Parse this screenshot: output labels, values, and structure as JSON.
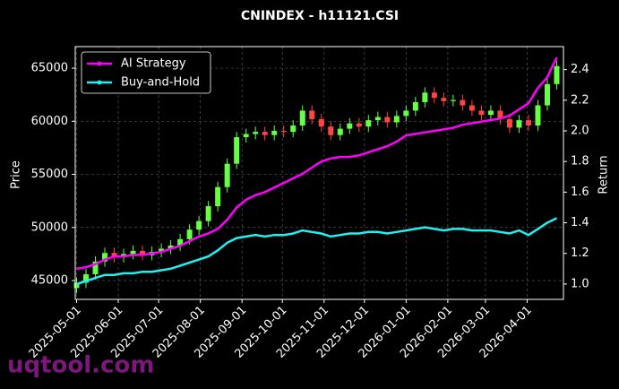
{
  "chart_data": {
    "type": "candlestick",
    "title": "CNINDEX - h11121.CSI",
    "y_label": "Price",
    "y2_label": "Return",
    "watermark": "uqtool.com",
    "grid": true,
    "legend": "upper left",
    "x": [
      "2025-05-01",
      "2025-05-08",
      "2025-05-15",
      "2025-05-22",
      "2025-05-29",
      "2025-06-05",
      "2025-06-12",
      "2025-06-19",
      "2025-06-26",
      "2025-07-03",
      "2025-07-10",
      "2025-07-17",
      "2025-07-24",
      "2025-07-31",
      "2025-08-07",
      "2025-08-14",
      "2025-08-21",
      "2025-08-28",
      "2025-09-04",
      "2025-09-11",
      "2025-09-18",
      "2025-09-25",
      "2025-10-02",
      "2025-10-09",
      "2025-10-16",
      "2025-10-23",
      "2025-10-30",
      "2025-11-06",
      "2025-11-13",
      "2025-11-20",
      "2025-11-27",
      "2025-12-04",
      "2025-12-11",
      "2025-12-18",
      "2025-12-25",
      "2026-01-01",
      "2026-01-08",
      "2026-01-15",
      "2026-01-22",
      "2026-01-29",
      "2026-02-05",
      "2026-02-12",
      "2026-02-19",
      "2026-02-26",
      "2026-03-05",
      "2026-03-12",
      "2026-03-19",
      "2026-03-26",
      "2026-04-02",
      "2026-04-09",
      "2026-04-16",
      "2026-04-23"
    ],
    "xlim": [
      "2025-04-30",
      "2026-04-28"
    ],
    "xticks": [
      "2025-05-01",
      "2025-06-01",
      "2025-07-01",
      "2025-08-01",
      "2025-09-01",
      "2025-10-01",
      "2025-11-01",
      "2025-12-01",
      "2026-01-01",
      "2026-02-01",
      "2026-03-01",
      "2026-04-01"
    ],
    "candles": {
      "up_color": "#66ff44",
      "down_color": "#ff4444",
      "open": [
        44300,
        44800,
        45600,
        46800,
        47600,
        47200,
        47500,
        47800,
        47400,
        47700,
        48000,
        48300,
        48900,
        49800,
        50600,
        52000,
        53800,
        56000,
        58500,
        58800,
        59000,
        58700,
        59100,
        59000,
        59600,
        61000,
        60200,
        59500,
        58700,
        59300,
        59800,
        59500,
        60100,
        60400,
        59900,
        60500,
        61000,
        61800,
        62700,
        62200,
        61900,
        62000,
        61500,
        61000,
        60600,
        61000,
        60200,
        59400,
        60100,
        59600,
        61500,
        63500
      ],
      "high": [
        45300,
        46100,
        47300,
        48100,
        48100,
        48000,
        48300,
        48300,
        48200,
        48500,
        48800,
        49400,
        50300,
        51100,
        52500,
        54300,
        56500,
        59000,
        59300,
        59500,
        59500,
        59600,
        59600,
        60100,
        61500,
        61500,
        60700,
        60000,
        59800,
        60300,
        60300,
        60600,
        60900,
        60900,
        61000,
        61500,
        62300,
        63200,
        63200,
        62700,
        62500,
        62500,
        62000,
        61500,
        61500,
        61500,
        60700,
        60600,
        60600,
        62000,
        64000,
        65700
      ],
      "low": [
        43800,
        44300,
        45100,
        46300,
        46700,
        46700,
        47000,
        46900,
        46900,
        47200,
        47500,
        47800,
        48400,
        49300,
        50100,
        51500,
        53300,
        55500,
        58000,
        58300,
        58200,
        58200,
        58500,
        58500,
        59100,
        59700,
        59000,
        58200,
        58200,
        58800,
        59000,
        59000,
        59600,
        59400,
        59400,
        60000,
        60500,
        61300,
        61700,
        61400,
        61400,
        61000,
        60500,
        60100,
        60100,
        59700,
        58900,
        58900,
        59100,
        59100,
        61000,
        63000
      ],
      "close": [
        44800,
        45600,
        46800,
        47600,
        47200,
        47500,
        47800,
        47400,
        47700,
        48000,
        48300,
        48900,
        49800,
        50600,
        52000,
        53800,
        56000,
        58500,
        58800,
        59000,
        58700,
        59100,
        59000,
        59600,
        61000,
        60200,
        59500,
        58700,
        59300,
        59800,
        59500,
        60100,
        60400,
        59900,
        60500,
        61000,
        61800,
        62700,
        62200,
        61900,
        62000,
        61500,
        61000,
        60600,
        61000,
        60200,
        59400,
        60100,
        59600,
        61500,
        63500,
        65200
      ]
    },
    "series": [
      {
        "name": "AI Strategy",
        "color": "#ff00ff",
        "axis": "y2",
        "values": [
          1.1,
          1.11,
          1.13,
          1.16,
          1.18,
          1.18,
          1.19,
          1.19,
          1.2,
          1.21,
          1.23,
          1.25,
          1.28,
          1.31,
          1.33,
          1.36,
          1.42,
          1.5,
          1.55,
          1.58,
          1.6,
          1.63,
          1.66,
          1.69,
          1.72,
          1.76,
          1.8,
          1.82,
          1.83,
          1.83,
          1.84,
          1.86,
          1.88,
          1.9,
          1.93,
          1.97,
          1.98,
          1.99,
          2.0,
          2.01,
          2.02,
          2.04,
          2.05,
          2.06,
          2.07,
          2.08,
          2.1,
          2.14,
          2.18,
          2.28,
          2.35,
          2.48
        ]
      },
      {
        "name": "Buy-and-Hold",
        "color": "#22f0f0",
        "axis": "y2",
        "values": [
          1.0,
          1.02,
          1.04,
          1.06,
          1.06,
          1.07,
          1.07,
          1.08,
          1.08,
          1.09,
          1.1,
          1.12,
          1.14,
          1.16,
          1.18,
          1.22,
          1.27,
          1.3,
          1.31,
          1.32,
          1.31,
          1.32,
          1.32,
          1.33,
          1.35,
          1.34,
          1.33,
          1.31,
          1.32,
          1.33,
          1.33,
          1.34,
          1.34,
          1.33,
          1.34,
          1.35,
          1.36,
          1.37,
          1.36,
          1.35,
          1.36,
          1.36,
          1.35,
          1.35,
          1.35,
          1.34,
          1.33,
          1.35,
          1.32,
          1.36,
          1.4,
          1.43
        ]
      }
    ],
    "ylim": [
      43230,
      67030
    ],
    "yticks": [
      45000,
      50000,
      55000,
      60000,
      65000
    ],
    "y2lim": [
      0.9,
      2.55
    ],
    "y2ticks": [
      {
        "value": 1,
        "label": "1.0"
      },
      1.2,
      1.4,
      1.6,
      1.8,
      {
        "value": 2,
        "label": "2.0"
      },
      2.2,
      2.4
    ]
  }
}
